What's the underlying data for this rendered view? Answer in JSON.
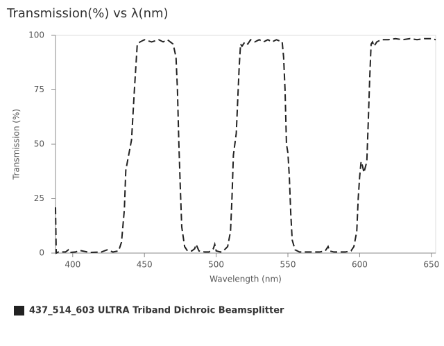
{
  "chart_data": {
    "type": "line",
    "title": "Transmission(%) vs λ(nm)",
    "x_label": "Wavelength (nm)",
    "y_label": "Transmission (%)",
    "x": [
      388,
      388.5,
      390,
      395,
      397,
      398,
      402,
      405,
      408,
      412,
      420,
      424,
      428,
      432,
      434,
      436,
      437,
      439,
      441,
      443,
      445,
      447,
      450,
      455,
      460,
      463,
      466,
      468,
      470,
      472,
      473,
      474,
      475,
      476,
      478,
      480,
      483,
      485,
      486,
      488,
      492,
      495,
      498,
      499,
      500,
      503,
      505,
      508,
      510,
      511,
      512,
      514,
      515,
      516,
      517,
      518,
      520,
      522,
      524,
      527,
      530,
      533,
      536,
      539,
      542,
      546,
      547,
      548,
      549,
      550,
      551,
      552,
      553,
      555,
      558,
      565,
      572,
      576,
      578,
      579,
      582,
      590,
      594,
      596,
      598,
      599,
      600,
      601,
      602,
      603,
      605,
      606,
      607,
      608,
      609,
      610,
      612,
      615,
      620,
      625,
      630,
      635,
      640,
      645,
      650,
      653
    ],
    "series": [
      {
        "name": "437_514_603 ULTRA Triband Dichroic Beamsplitter",
        "color": "#222222",
        "values": [
          21,
          0,
          0.5,
          0.5,
          1.5,
          0.3,
          0.5,
          1.2,
          0.8,
          0.3,
          0.5,
          1.5,
          0.5,
          1,
          5,
          20,
          38,
          45,
          52,
          75,
          96,
          97,
          98,
          97,
          98,
          97,
          98,
          97,
          96,
          90,
          75,
          50,
          30,
          12,
          3,
          1,
          1,
          2,
          4,
          1,
          0.5,
          0.5,
          2,
          4,
          1,
          0.5,
          1,
          3,
          10,
          25,
          45,
          55,
          70,
          85,
          96,
          95,
          97,
          96,
          98,
          97,
          98,
          97,
          98,
          97,
          98,
          97,
          90,
          75,
          50,
          46,
          35,
          18,
          6,
          1.5,
          0.5,
          0.5,
          0.5,
          1,
          3,
          1,
          0.5,
          0.5,
          1,
          3,
          10,
          25,
          35,
          42,
          40,
          37,
          42,
          60,
          80,
          96,
          97,
          95,
          97,
          98,
          98,
          98.5,
          98,
          98.5,
          98,
          98.5,
          98.5,
          98
        ]
      }
    ],
    "xlim": [
      388,
      653
    ],
    "xticks": [
      400,
      450,
      500,
      550,
      600,
      650
    ],
    "ylim": [
      0,
      100
    ],
    "yticks": [
      0,
      25,
      50,
      75,
      100
    ],
    "grid": false
  }
}
